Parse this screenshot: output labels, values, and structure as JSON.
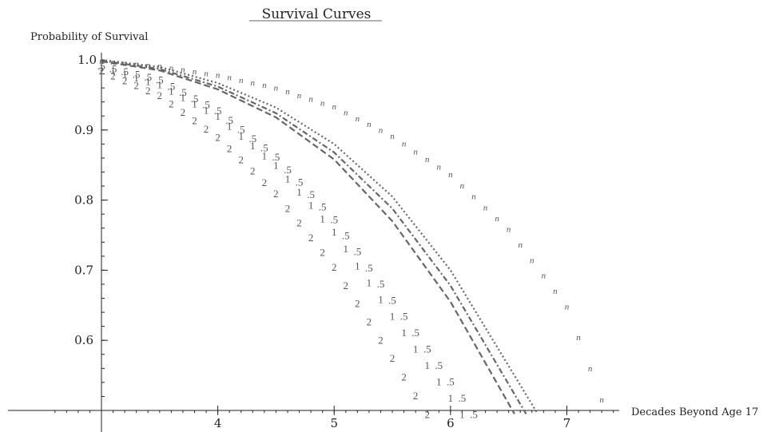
{
  "chart_data": {
    "type": "line",
    "title": "Survival Curves",
    "xlabel": "Decades Beyond Age 17",
    "ylabel": "Probability of Survival",
    "xlim": [
      2.6,
      7.45
    ],
    "ylim": [
      0.5,
      1.0
    ],
    "x_ticks": [
      4,
      5,
      6,
      7
    ],
    "y_ticks": [
      0.6,
      0.7,
      0.8,
      0.9
    ],
    "y_tick_labels": [
      "0.6",
      "0.7",
      "0.8",
      "0.9"
    ],
    "y_top_label": "1.0",
    "grid": false,
    "legend": "none",
    "series": [
      {
        "marker": "2",
        "style": "marker",
        "color": "#555555",
        "x": [
          3.0,
          3.5,
          4.0,
          4.5,
          5.0,
          5.5,
          5.8
        ],
        "y": [
          0.985,
          0.95,
          0.89,
          0.81,
          0.705,
          0.575,
          0.495
        ]
      },
      {
        "marker": "1",
        "style": "marker",
        "color": "#555555",
        "x": [
          3.0,
          3.5,
          4.0,
          4.5,
          5.0,
          5.5,
          6.1
        ],
        "y": [
          0.99,
          0.965,
          0.92,
          0.85,
          0.755,
          0.635,
          0.495
        ]
      },
      {
        "marker": ".5",
        "style": "marker",
        "color": "#555555",
        "x": [
          3.0,
          3.5,
          4.0,
          4.5,
          5.0,
          5.5,
          6.2
        ],
        "y": [
          0.992,
          0.972,
          0.928,
          0.862,
          0.773,
          0.658,
          0.495
        ]
      },
      {
        "style": "dashed",
        "color": "#666666",
        "x": [
          3.0,
          3.5,
          4.0,
          4.5,
          5.0,
          5.5,
          6.0,
          6.55
        ],
        "y": [
          0.998,
          0.985,
          0.958,
          0.918,
          0.858,
          0.77,
          0.655,
          0.495
        ]
      },
      {
        "style": "dashdot",
        "color": "#666666",
        "x": [
          3.0,
          3.5,
          4.0,
          4.5,
          5.0,
          5.5,
          6.0,
          6.65
        ],
        "y": [
          0.999,
          0.987,
          0.962,
          0.924,
          0.868,
          0.788,
          0.678,
          0.495
        ]
      },
      {
        "style": "dotted",
        "color": "#666666",
        "x": [
          3.0,
          3.5,
          4.0,
          4.5,
          5.0,
          5.5,
          6.0,
          6.75
        ],
        "y": [
          1.0,
          0.99,
          0.967,
          0.932,
          0.88,
          0.805,
          0.7,
          0.495
        ]
      },
      {
        "marker": "n",
        "style": "marker",
        "color": "#555555",
        "x": [
          3.0,
          3.5,
          4.0,
          4.5,
          5.0,
          5.5,
          6.0,
          6.5,
          7.0,
          7.35
        ],
        "y": [
          1.0,
          0.993,
          0.98,
          0.962,
          0.935,
          0.893,
          0.838,
          0.76,
          0.65,
          0.495
        ]
      }
    ]
  }
}
